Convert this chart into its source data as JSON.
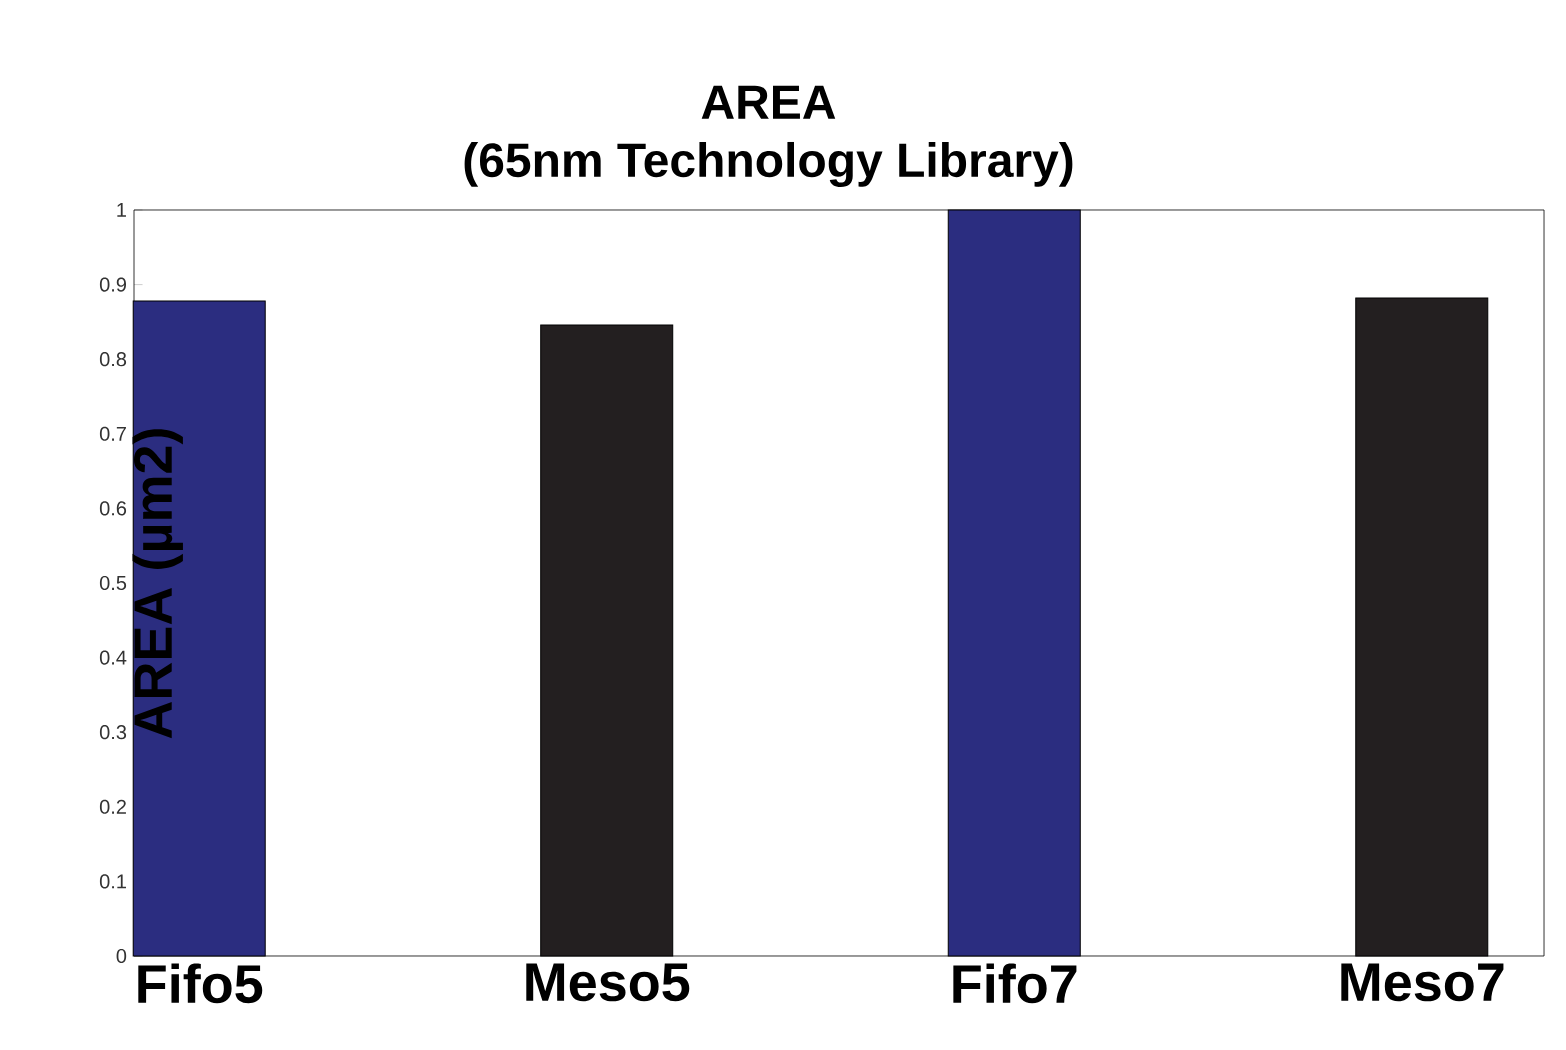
{
  "chart_data": {
    "type": "bar",
    "title": "AREA\n(65nm Technology Library)",
    "ylabel": "AREA (µm2)",
    "categories": [
      "Fifo5",
      "Meso5",
      "Fifo7",
      "Meso7"
    ],
    "values": [
      0.878,
      0.846,
      1.0,
      0.882
    ],
    "colors": [
      "#2b2d80",
      "#231f20",
      "#2b2d80",
      "#231f20"
    ],
    "ylim": [
      0,
      1
    ],
    "yticks": [
      0,
      0.1,
      0.2,
      0.3,
      0.4,
      0.5,
      0.6,
      0.7,
      0.8,
      0.9,
      1
    ],
    "grid": false
  }
}
